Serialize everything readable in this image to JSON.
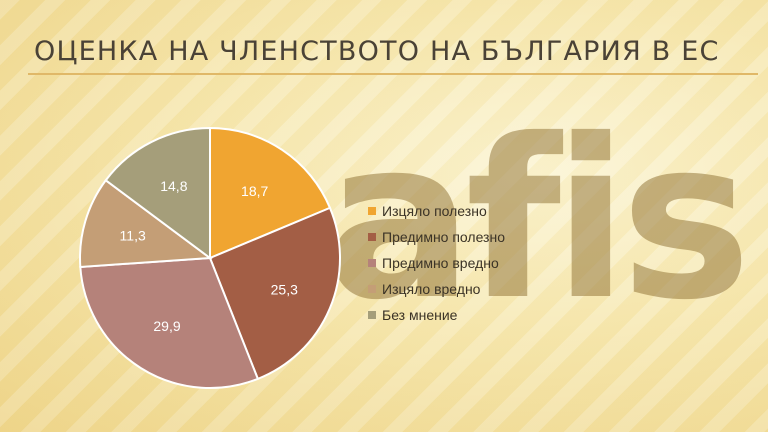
{
  "slide": {
    "title": "ОЦЕНКА НА ЧЛЕНСТВОТО НА БЪЛГАРИЯ В ЕС",
    "watermark_text": "afis"
  },
  "chart_data": {
    "type": "pie",
    "title": "",
    "legend_position": "right",
    "categories": [
      "Изцяло полезно",
      "Предимно полезно",
      "Предимно вредно",
      "Изцяло вредно",
      "Без мнение"
    ],
    "values": [
      18.7,
      25.3,
      29.9,
      11.3,
      14.8
    ],
    "value_labels": [
      "18,7",
      "25,3",
      "29,9",
      "11,3",
      "14,8"
    ],
    "colors": [
      "#f0a531",
      "#a35e45",
      "#b5827a",
      "#c49e76",
      "#a59e7a"
    ]
  }
}
